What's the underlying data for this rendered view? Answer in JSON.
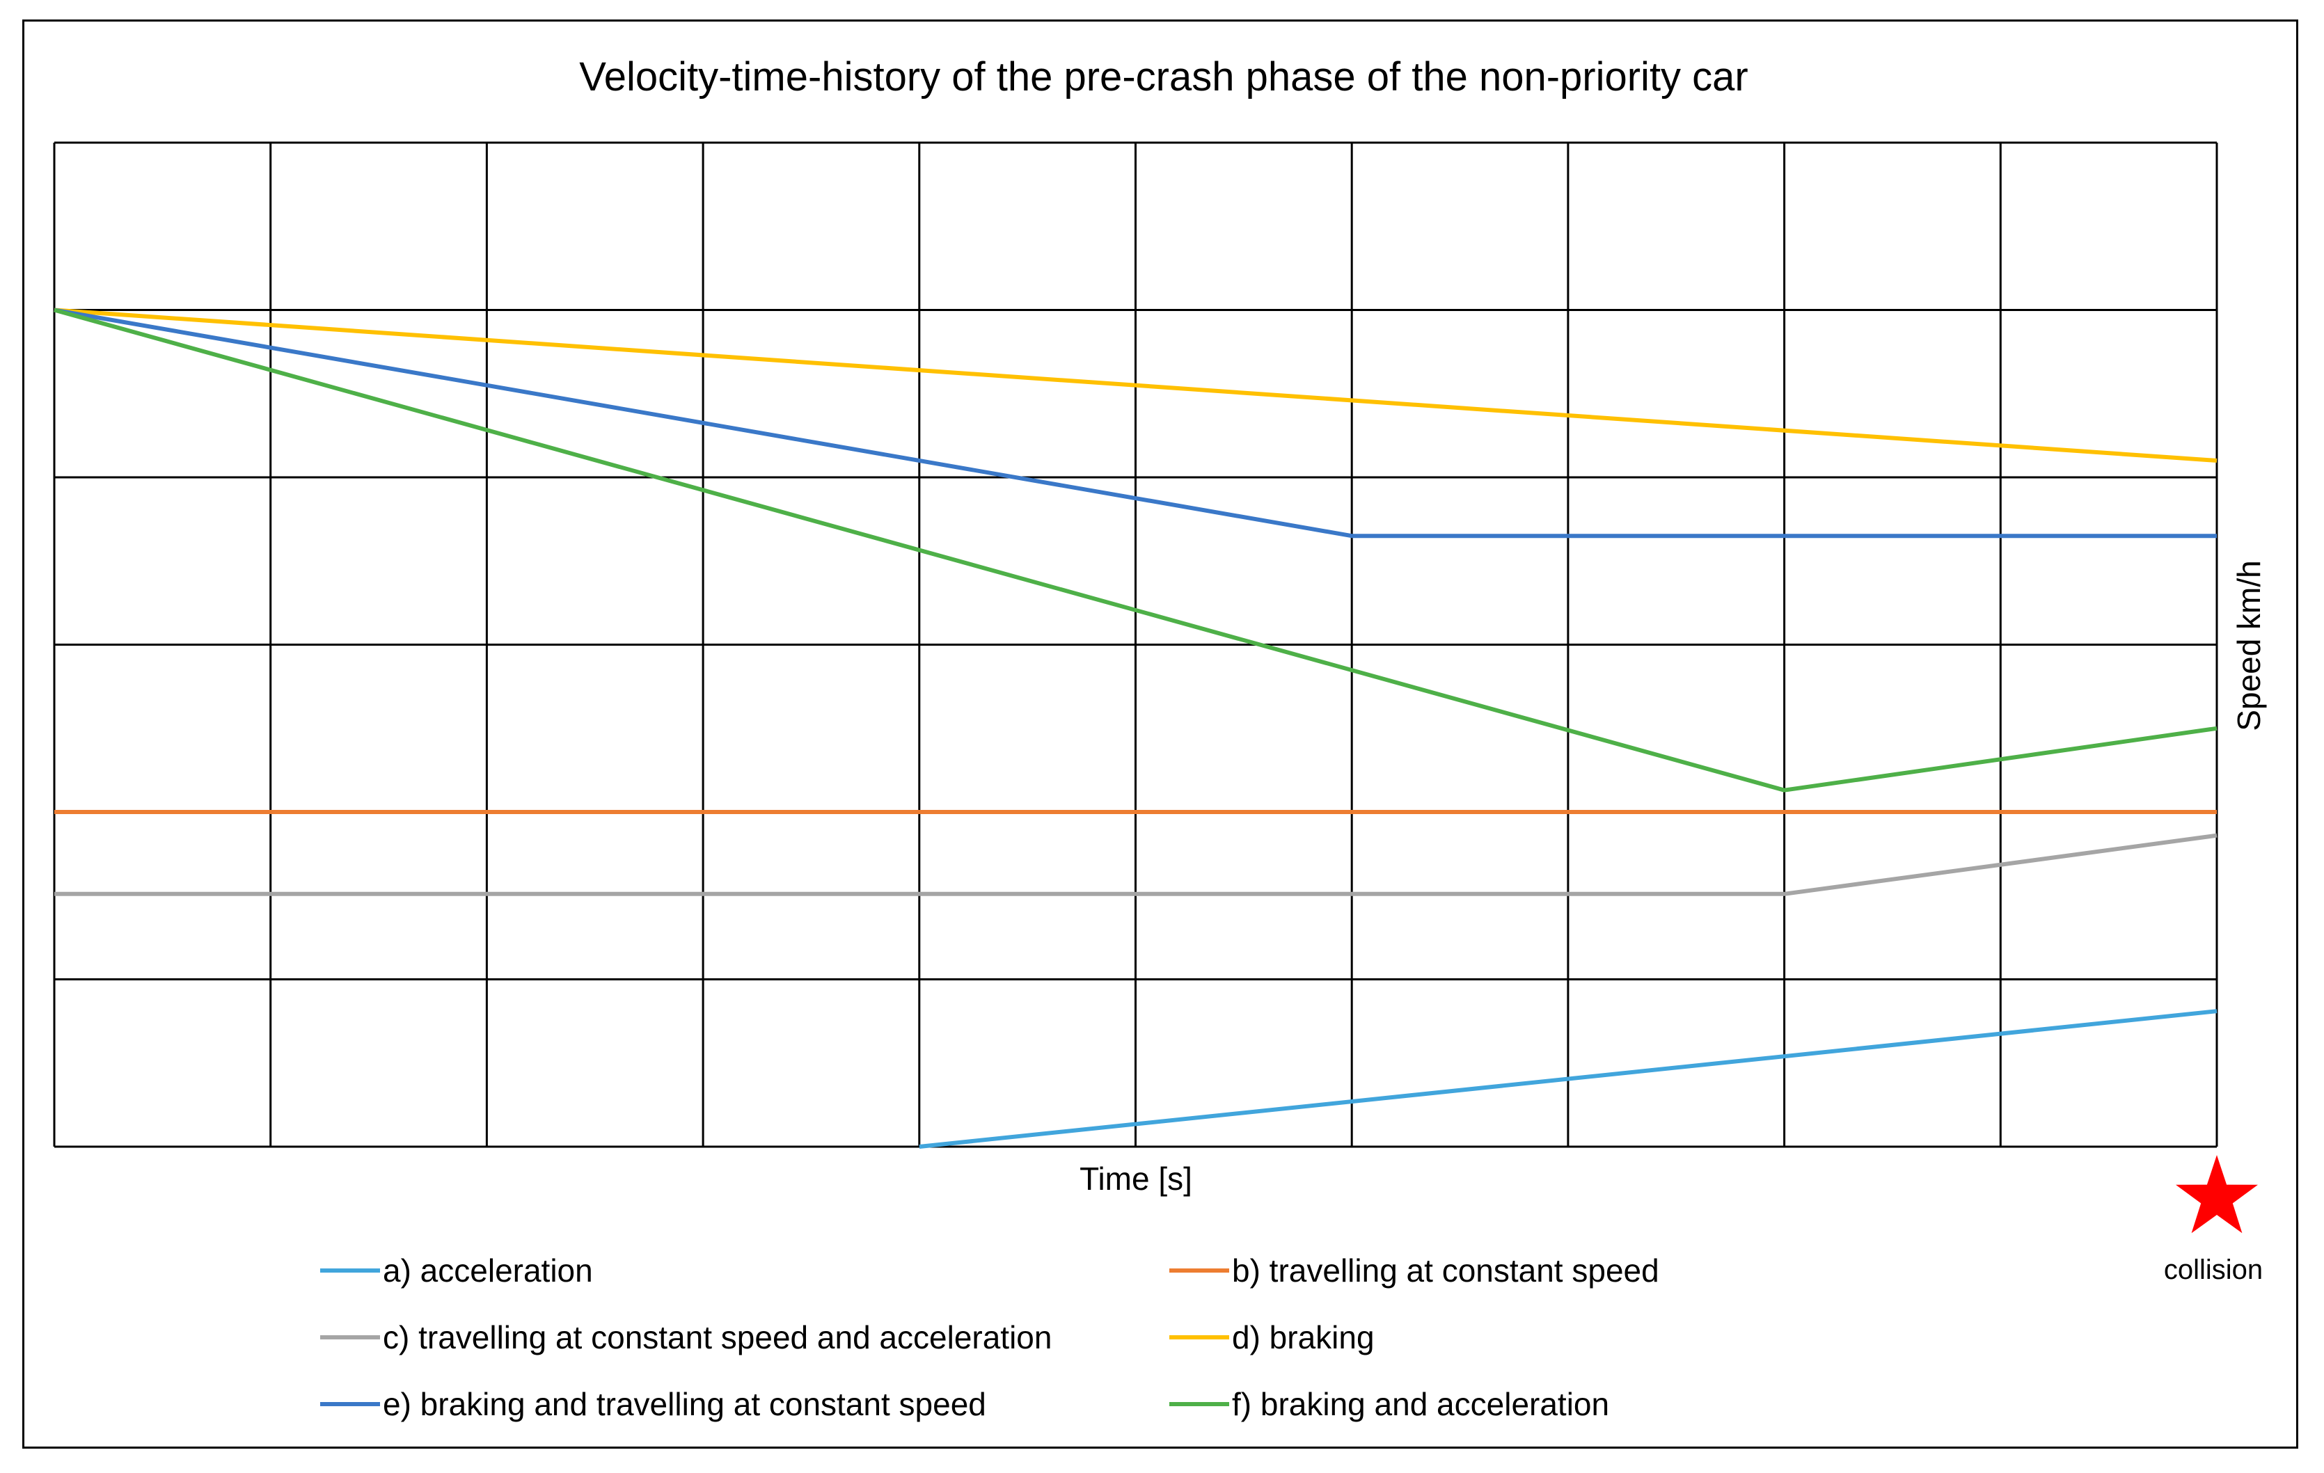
{
  "chart_data": {
    "type": "line",
    "title": "Velocity-time-history of the pre-crash phase of the non-priority car",
    "xlabel": "Time [s]",
    "ylabel": "Speed km/h",
    "xlim": [
      0,
      10
    ],
    "ylim": [
      0,
      6
    ],
    "grid": true,
    "legend_position": "bottom",
    "series": [
      {
        "name": "a) acceleration",
        "color": "#41a5dc",
        "points": [
          [
            4,
            0
          ],
          [
            10,
            0.81
          ]
        ]
      },
      {
        "name": "b) travelling at constant speed",
        "color": "#ed7d31",
        "points": [
          [
            0,
            2.0
          ],
          [
            10,
            2.0
          ]
        ]
      },
      {
        "name": "c) travelling at constant speed and acceleration",
        "color": "#a5a5a5",
        "points": [
          [
            0,
            1.51
          ],
          [
            8,
            1.51
          ],
          [
            10,
            1.86
          ]
        ]
      },
      {
        "name": "d) braking",
        "color": "#ffc000",
        "points": [
          [
            0,
            5.0
          ],
          [
            10,
            4.1
          ]
        ]
      },
      {
        "name": "e) braking and travelling at constant speed",
        "color": "#3a78c8",
        "points": [
          [
            0,
            5.0
          ],
          [
            6,
            3.65
          ],
          [
            10,
            3.65
          ]
        ]
      },
      {
        "name": "f) braking and acceleration",
        "color": "#4eb048",
        "points": [
          [
            0,
            5.0
          ],
          [
            8,
            2.13
          ],
          [
            10,
            2.5
          ]
        ]
      }
    ],
    "annotations": [
      {
        "label": "collision",
        "icon": "star-icon",
        "color": "#ff0000",
        "x": 10
      }
    ]
  }
}
